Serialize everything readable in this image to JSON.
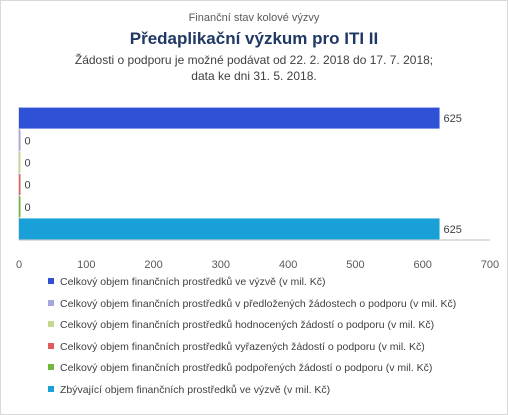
{
  "header": {
    "supertitle": "Finanční stav kolové výzvy",
    "title": "Předaplikační výzkum pro ITI II",
    "subtitle_line1": "Žádosti o podporu je možné podávat od 22. 2. 2018 do 17. 7. 2018;",
    "subtitle_line2": "data ke dni 31. 5. 2018."
  },
  "chart_data": {
    "type": "bar",
    "orientation": "horizontal",
    "xlim": [
      0,
      700
    ],
    "xticks": [
      0,
      100,
      200,
      300,
      400,
      500,
      600,
      700
    ],
    "grid": false,
    "legend_position": "bottom",
    "data_labels": true,
    "series": [
      {
        "name": "Celkový objem finančních prostředků ve výzvě (v mil. Kč)",
        "value": 625,
        "color": "#2e51d6"
      },
      {
        "name": "Celkový objem finančních prostředků v předložených žádostech o podporu (v mil. Kč)",
        "value": 0,
        "color": "#a6a6e0"
      },
      {
        "name": "Celkový objem finančních prostředků hodnocených žádostí o podporu (v mil. Kč)",
        "value": 0,
        "color": "#c5d98a"
      },
      {
        "name": "Celkový objem finančních prostředků vyřazených žádostí o podporu (v mil. Kč)",
        "value": 0,
        "color": "#e05c5c"
      },
      {
        "name": "Celkový objem finančních prostředků podpořených žádostí o podporu (v mil. Kč)",
        "value": 0,
        "color": "#6fb83a"
      },
      {
        "name": "Zbývající objem finančních prostředků ve výzvě (v mil. Kč)",
        "value": 625,
        "color": "#1aa0d8"
      }
    ]
  }
}
